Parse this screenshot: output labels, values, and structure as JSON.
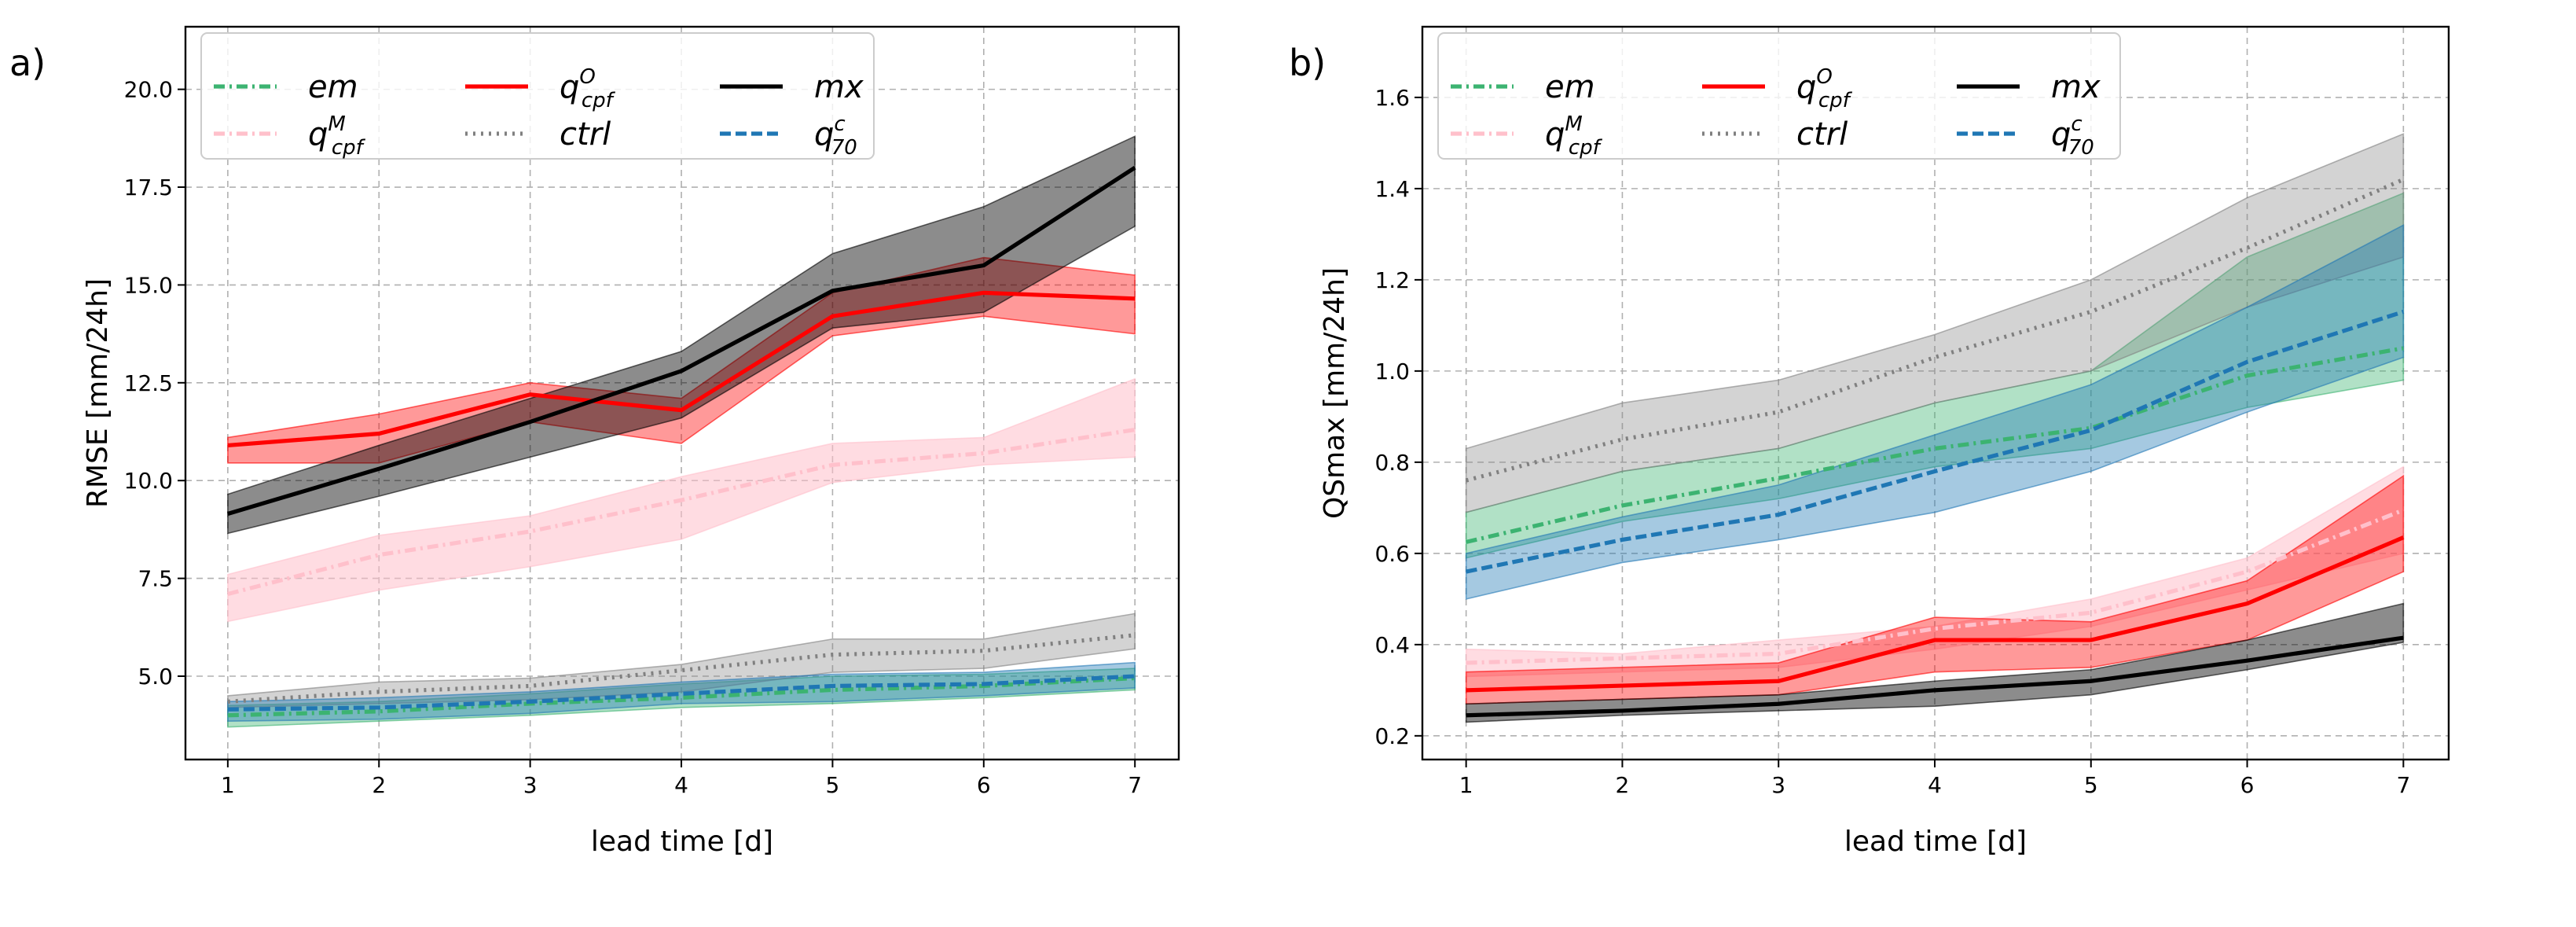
{
  "chart_data": [
    {
      "panel_label": "a)",
      "type": "line",
      "xlabel": "lead time [d]",
      "ylabel": "RMSE [mm/24h]",
      "x": [
        1,
        2,
        3,
        4,
        5,
        6,
        7
      ],
      "xlim": [
        0.72,
        7.29
      ],
      "ylim": [
        2.87,
        21.6
      ],
      "xticks": [
        "1",
        "2",
        "3",
        "4",
        "5",
        "6",
        "7"
      ],
      "yticks": [
        "5.0",
        "7.5",
        "10.0",
        "12.5",
        "15.0",
        "17.5",
        "20.0"
      ],
      "grid": true,
      "legend_position": "top-left",
      "series": [
        {
          "name": "em",
          "sup": "",
          "sub": "",
          "color": "#3cb371",
          "dash": "dashdot",
          "values": [
            4.0,
            4.1,
            4.3,
            4.45,
            4.65,
            4.75,
            4.95
          ],
          "lower": [
            3.7,
            3.85,
            4.0,
            4.2,
            4.3,
            4.45,
            4.65
          ],
          "upper": [
            4.25,
            4.35,
            4.55,
            4.8,
            5.0,
            5.05,
            5.2
          ]
        },
        {
          "name": "q",
          "sup": "M",
          "sub": "cpf",
          "color": "#ffc0cb",
          "dash": "dashdot",
          "values": [
            7.1,
            8.1,
            8.7,
            9.5,
            10.4,
            10.7,
            11.3
          ],
          "lower": [
            6.4,
            7.2,
            7.8,
            8.5,
            9.95,
            10.4,
            10.6
          ],
          "upper": [
            7.6,
            8.6,
            9.1,
            10.1,
            10.95,
            11.1,
            12.6
          ]
        },
        {
          "name": "q",
          "sup": "O",
          "sub": "cpf",
          "color": "#ff0000",
          "dash": "solid",
          "values": [
            10.9,
            11.2,
            12.2,
            11.8,
            14.2,
            14.8,
            14.65
          ],
          "lower": [
            10.45,
            10.45,
            11.5,
            10.95,
            13.7,
            14.2,
            13.75
          ],
          "upper": [
            11.1,
            11.7,
            12.5,
            12.1,
            14.8,
            15.7,
            15.25
          ]
        },
        {
          "name": "ctrl",
          "sup": "",
          "sub": "",
          "color": "#808080",
          "dash": "dotted",
          "values": [
            4.35,
            4.6,
            4.75,
            5.15,
            5.55,
            5.65,
            6.05
          ],
          "lower": [
            4.2,
            4.3,
            4.4,
            4.6,
            5.1,
            5.2,
            5.7
          ],
          "upper": [
            4.5,
            4.85,
            4.95,
            5.3,
            5.95,
            5.95,
            6.6
          ]
        },
        {
          "name": "mx",
          "sup": "",
          "sub": "",
          "color": "#000000",
          "dash": "solid",
          "values": [
            9.15,
            10.3,
            11.5,
            12.8,
            14.85,
            15.5,
            18.0
          ],
          "lower": [
            8.65,
            9.6,
            10.6,
            11.6,
            13.9,
            14.3,
            16.5
          ],
          "upper": [
            9.65,
            10.9,
            12.1,
            13.3,
            15.8,
            17.0,
            18.8
          ]
        },
        {
          "name": "q",
          "sup": "c",
          "sub": "70",
          "color": "#1f77b4",
          "dash": "dashed",
          "values": [
            4.15,
            4.2,
            4.35,
            4.55,
            4.75,
            4.8,
            5.0
          ],
          "lower": [
            3.85,
            3.9,
            4.05,
            4.3,
            4.35,
            4.5,
            4.7
          ],
          "upper": [
            4.35,
            4.45,
            4.6,
            4.85,
            5.05,
            5.1,
            5.35
          ]
        }
      ]
    },
    {
      "panel_label": "b)",
      "type": "line",
      "xlabel": "lead time [d]",
      "ylabel": "QSmax [mm/24h]",
      "x": [
        1,
        2,
        3,
        4,
        5,
        6,
        7
      ],
      "xlim": [
        0.72,
        7.29
      ],
      "ylim": [
        0.148,
        1.755
      ],
      "xticks": [
        "1",
        "2",
        "3",
        "4",
        "5",
        "6",
        "7"
      ],
      "yticks": [
        "0.2",
        "0.4",
        "0.6",
        "0.8",
        "1.0",
        "1.2",
        "1.4",
        "1.6"
      ],
      "grid": true,
      "legend_position": "top-left",
      "series": [
        {
          "name": "em",
          "sup": "",
          "sub": "",
          "color": "#3cb371",
          "dash": "dashdot",
          "values": [
            0.625,
            0.705,
            0.765,
            0.83,
            0.875,
            0.99,
            1.05
          ],
          "lower": [
            0.59,
            0.67,
            0.72,
            0.79,
            0.83,
            0.92,
            0.98
          ],
          "upper": [
            0.69,
            0.78,
            0.83,
            0.93,
            1.0,
            1.25,
            1.39
          ]
        },
        {
          "name": "q",
          "sup": "M",
          "sub": "cpf",
          "color": "#ffc0cb",
          "dash": "dashdot",
          "values": [
            0.36,
            0.37,
            0.38,
            0.435,
            0.47,
            0.56,
            0.695
          ],
          "lower": [
            0.33,
            0.34,
            0.35,
            0.39,
            0.44,
            0.52,
            0.6
          ],
          "upper": [
            0.39,
            0.38,
            0.41,
            0.44,
            0.5,
            0.59,
            0.79
          ]
        },
        {
          "name": "q",
          "sup": "O",
          "sub": "cpf",
          "color": "#ff0000",
          "dash": "solid",
          "values": [
            0.3,
            0.31,
            0.32,
            0.41,
            0.41,
            0.49,
            0.635
          ],
          "lower": [
            0.27,
            0.28,
            0.29,
            0.34,
            0.35,
            0.41,
            0.56
          ],
          "upper": [
            0.34,
            0.35,
            0.36,
            0.46,
            0.45,
            0.54,
            0.77
          ]
        },
        {
          "name": "ctrl",
          "sup": "",
          "sub": "",
          "color": "#808080",
          "dash": "dotted",
          "values": [
            0.76,
            0.85,
            0.91,
            1.03,
            1.13,
            1.27,
            1.42
          ],
          "lower": [
            0.69,
            0.78,
            0.83,
            0.93,
            1.0,
            1.14,
            1.25
          ],
          "upper": [
            0.83,
            0.93,
            0.98,
            1.08,
            1.2,
            1.38,
            1.52
          ]
        },
        {
          "name": "mx",
          "sup": "",
          "sub": "",
          "color": "#000000",
          "dash": "solid",
          "values": [
            0.245,
            0.255,
            0.27,
            0.3,
            0.32,
            0.365,
            0.415
          ],
          "lower": [
            0.23,
            0.245,
            0.255,
            0.265,
            0.29,
            0.345,
            0.405
          ],
          "upper": [
            0.27,
            0.28,
            0.29,
            0.32,
            0.345,
            0.41,
            0.49
          ]
        },
        {
          "name": "q",
          "sup": "c",
          "sub": "70",
          "color": "#1f77b4",
          "dash": "dashed",
          "values": [
            0.56,
            0.63,
            0.685,
            0.78,
            0.87,
            1.02,
            1.13
          ],
          "lower": [
            0.5,
            0.58,
            0.63,
            0.69,
            0.78,
            0.91,
            1.03
          ],
          "upper": [
            0.6,
            0.68,
            0.75,
            0.86,
            0.97,
            1.14,
            1.32
          ]
        }
      ]
    }
  ]
}
